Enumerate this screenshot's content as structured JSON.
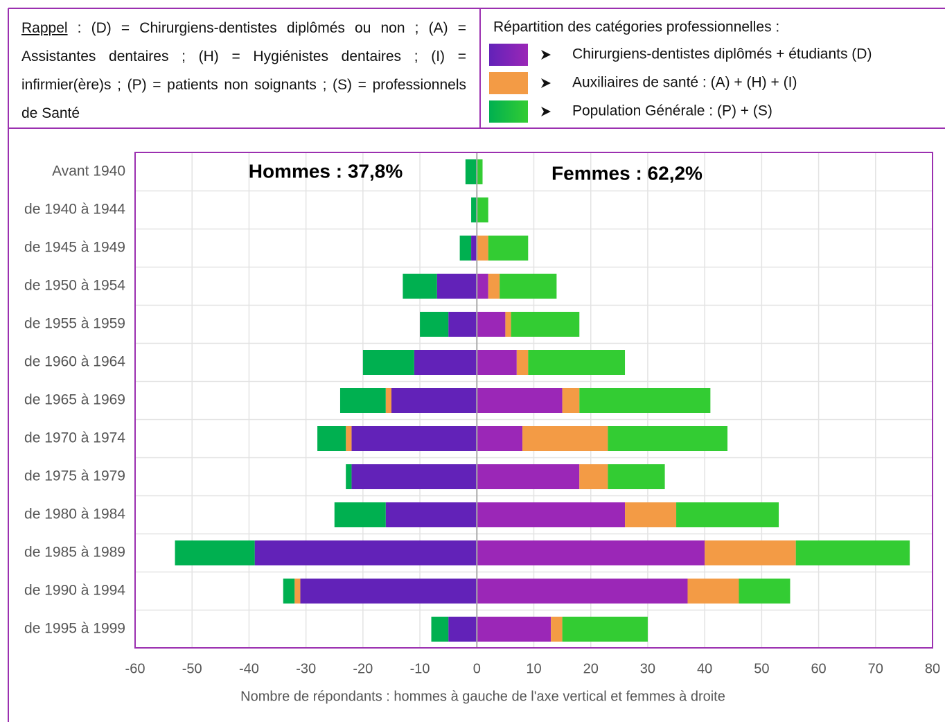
{
  "chart_data": {
    "type": "pyramid",
    "note_label": "Rappel",
    "note_text": " : (D) = Chirurgiens-dentistes diplômés ou non ; (A) = Assistantes dentaires ; (H) = Hygiénistes dentaires ; (I) = infirmier(ère)s ; (P) = patients non soignants ; (S) = professionnels de Santé",
    "legend_title": "Répartition des catégories professionnelles :",
    "annotations": [
      "Hommes : 37,8%",
      "Femmes : 62,2%"
    ],
    "xlabel": "Nombre de répondants : hommes à gauche de l'axe vertical et femmes à droite",
    "categories": [
      "Avant 1940",
      "de 1940 à 1944",
      "de 1945 à 1949",
      "de 1950 à 1954",
      "de 1955 à 1959",
      "de 1960 à 1964",
      "de 1965 à 1969",
      "de 1970 à 1974",
      "de 1975 à 1979",
      "de 1980 à 1984",
      "de 1985 à 1989",
      "de 1990 à 1994",
      "de 1995 à 1999"
    ],
    "series": [
      {
        "name": "Chirurgiens-dentistes diplômés + étudiants (D)",
        "men_color": "#6222b8",
        "women_color": "#9b27b7",
        "men_values": [
          0,
          0,
          -1,
          -7,
          -5,
          -11,
          -15,
          -22,
          -22,
          -16,
          -39,
          -31,
          -5
        ],
        "women_values": [
          0,
          0,
          0,
          2,
          5,
          7,
          15,
          8,
          18,
          26,
          40,
          37,
          13
        ]
      },
      {
        "name": "Auxiliaires de santé : (A) + (H) + (I)",
        "men_color": "#f39b45",
        "women_color": "#f39b45",
        "men_values": [
          0,
          0,
          0,
          0,
          0,
          0,
          -1,
          -1,
          0,
          0,
          0,
          -1,
          0
        ],
        "women_values": [
          0,
          0,
          2,
          2,
          1,
          2,
          3,
          15,
          5,
          9,
          16,
          9,
          2
        ]
      },
      {
        "name": "Population Générale : (P) + (S)",
        "men_color": "#00b050",
        "women_color": "#33cc33",
        "men_values": [
          -2,
          -1,
          -2,
          -6,
          -5,
          -9,
          -8,
          -5,
          -1,
          -9,
          -14,
          -2,
          -3
        ],
        "women_values": [
          1,
          2,
          7,
          10,
          12,
          17,
          23,
          21,
          10,
          18,
          20,
          9,
          15
        ]
      }
    ],
    "xlim": [
      -60,
      80
    ],
    "xticks": [
      -60,
      -50,
      -40,
      -30,
      -20,
      -10,
      0,
      10,
      20,
      30,
      40,
      50,
      60,
      70,
      80
    ],
    "grid": true
  }
}
